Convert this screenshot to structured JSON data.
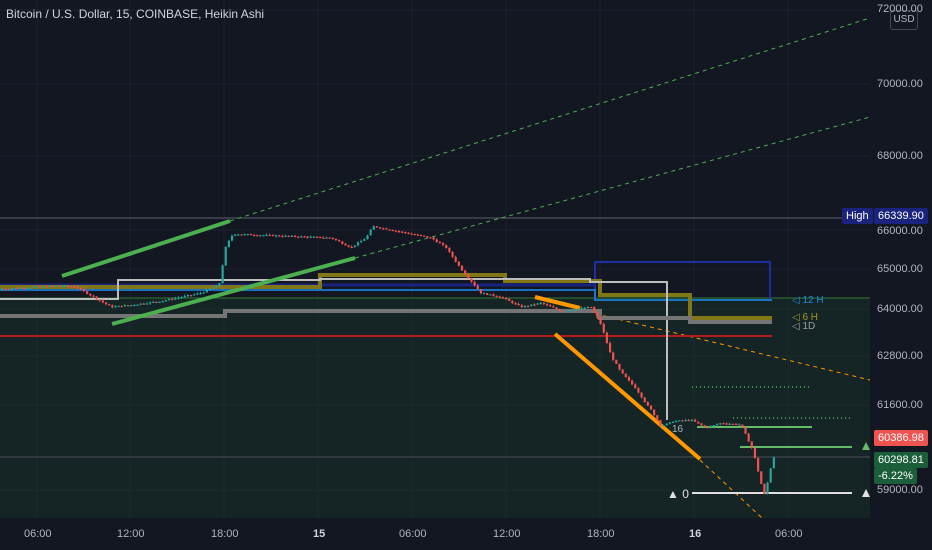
{
  "header": {
    "title": "Bitcoin / U.S. Dollar, 15, COINBASE, Heikin Ashi"
  },
  "currency_button": "USD",
  "labels": {
    "high_label": "High",
    "high_value": "66339.90",
    "last_price": "60386.98",
    "current_price": "60298.81",
    "current_change": "-6.22%",
    "zero_marker": "▲ 0",
    "tf_12h": "◁ 12 H",
    "tf_6h": "◁ 6 H",
    "tf_1d": "◁ 1D",
    "tf_16": "16"
  },
  "colors": {
    "background": "#131722",
    "up": "#26a69a",
    "down": "#ef5350",
    "trend_green": "#4caf50",
    "trend_orange": "#ff9800",
    "level_red": "#b71c1c",
    "level_blue": "#1e2fa3",
    "level_olive": "#9e9d24",
    "level_gray": "#9e9e9e",
    "zone_fill": "#1b3d2a"
  },
  "chart_data": {
    "type": "candlestick",
    "title": "Bitcoin / U.S. Dollar, 15, COINBASE, Heikin Ashi",
    "y_axis": {
      "unit": "USD",
      "ticks": [
        "72000.00",
        "70000.00",
        "68000.00",
        "66000.00",
        "65000.00",
        "64000.00",
        "62800.00",
        "61600.00",
        "59000.00"
      ],
      "tick_values": [
        72000,
        70000,
        68000,
        66000,
        65000,
        64000,
        62800,
        61600,
        59000
      ]
    },
    "x_axis": {
      "ticks": [
        "06:00",
        "12:00",
        "18:00",
        "15",
        "06:00",
        "12:00",
        "18:00",
        "16",
        "06:00"
      ]
    },
    "ylim": [
      58500,
      72500
    ],
    "markers": {
      "high": 66339.9,
      "last": 60386.98,
      "current": 60298.81,
      "change_pct": -6.22
    },
    "grid": true,
    "series_keypoints": [
      {
        "x": 0,
        "y": 64500
      },
      {
        "x": 60,
        "y": 64580
      },
      {
        "x": 75,
        "y": 64550
      },
      {
        "x": 110,
        "y": 64050
      },
      {
        "x": 130,
        "y": 64100
      },
      {
        "x": 160,
        "y": 64200
      },
      {
        "x": 200,
        "y": 64400
      },
      {
        "x": 218,
        "y": 64600
      },
      {
        "x": 225,
        "y": 65600
      },
      {
        "x": 232,
        "y": 65900
      },
      {
        "x": 280,
        "y": 65850
      },
      {
        "x": 330,
        "y": 65800
      },
      {
        "x": 350,
        "y": 65550
      },
      {
        "x": 365,
        "y": 65800
      },
      {
        "x": 372,
        "y": 66100
      },
      {
        "x": 400,
        "y": 65950
      },
      {
        "x": 430,
        "y": 65800
      },
      {
        "x": 445,
        "y": 65550
      },
      {
        "x": 460,
        "y": 65000
      },
      {
        "x": 480,
        "y": 64400
      },
      {
        "x": 500,
        "y": 64300
      },
      {
        "x": 520,
        "y": 64050
      },
      {
        "x": 540,
        "y": 64150
      },
      {
        "x": 560,
        "y": 63950
      },
      {
        "x": 590,
        "y": 64050
      },
      {
        "x": 600,
        "y": 63600
      },
      {
        "x": 610,
        "y": 62800
      },
      {
        "x": 620,
        "y": 62400
      },
      {
        "x": 635,
        "y": 62000
      },
      {
        "x": 650,
        "y": 61450
      },
      {
        "x": 660,
        "y": 60950
      },
      {
        "x": 672,
        "y": 61100
      },
      {
        "x": 690,
        "y": 61150
      },
      {
        "x": 705,
        "y": 60900
      },
      {
        "x": 720,
        "y": 61050
      },
      {
        "x": 740,
        "y": 61000
      },
      {
        "x": 752,
        "y": 60200
      },
      {
        "x": 760,
        "y": 59200
      },
      {
        "x": 764,
        "y": 58800
      },
      {
        "x": 768,
        "y": 59500
      },
      {
        "x": 775,
        "y": 60250
      }
    ]
  }
}
